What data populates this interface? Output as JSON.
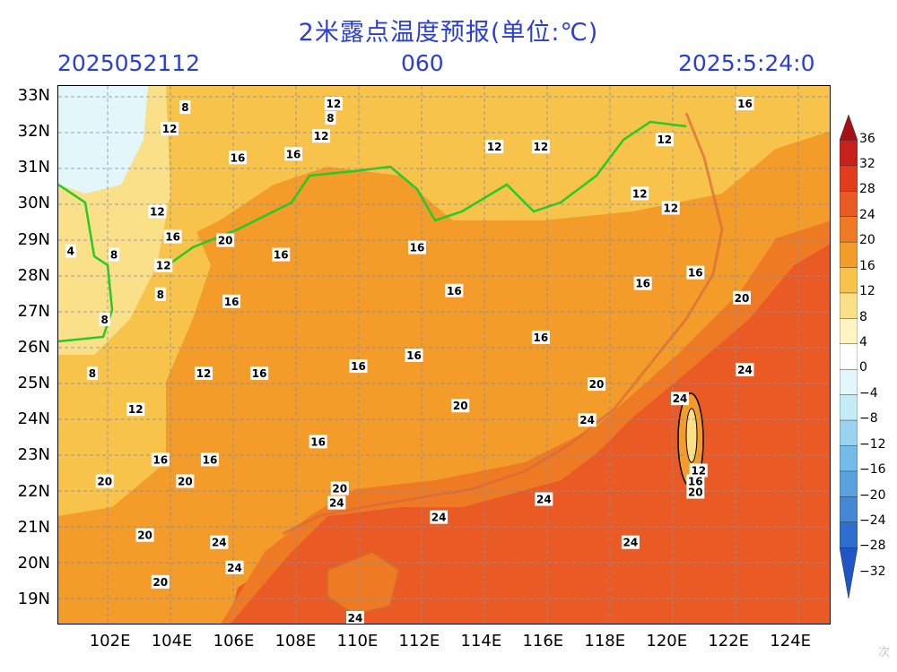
{
  "header": {
    "title": "2米露点温度预报(单位:℃)",
    "init_time": "2025052112",
    "lead_hours": "060",
    "valid_time": "2025:5:24:0"
  },
  "map": {
    "lat_labels": [
      "33N",
      "32N",
      "31N",
      "30N",
      "29N",
      "28N",
      "27N",
      "26N",
      "25N",
      "24N",
      "23N",
      "22N",
      "21N",
      "20N",
      "19N"
    ],
    "lon_labels": [
      "102E",
      "104E",
      "106E",
      "108E",
      "110E",
      "112E",
      "114E",
      "116E",
      "118E",
      "120E",
      "122E",
      "124E"
    ],
    "lat_range": [
      18.3,
      33.3
    ],
    "lon_range": [
      100.3,
      125.3
    ],
    "contour_labels": [
      {
        "text": "8",
        "lon": 104.4,
        "lat": 32.7
      },
      {
        "text": "12",
        "lon": 103.9,
        "lat": 32.1
      },
      {
        "text": "12",
        "lon": 109.2,
        "lat": 32.8
      },
      {
        "text": "8",
        "lon": 109.1,
        "lat": 32.4
      },
      {
        "text": "12",
        "lon": 108.8,
        "lat": 31.9
      },
      {
        "text": "16",
        "lon": 106.1,
        "lat": 31.3
      },
      {
        "text": "16",
        "lon": 107.9,
        "lat": 31.4
      },
      {
        "text": "12",
        "lon": 114.4,
        "lat": 31.6
      },
      {
        "text": "12",
        "lon": 115.9,
        "lat": 31.6
      },
      {
        "text": "16",
        "lon": 122.5,
        "lat": 32.8
      },
      {
        "text": "12",
        "lon": 119.9,
        "lat": 31.8
      },
      {
        "text": "12",
        "lon": 119.1,
        "lat": 30.3
      },
      {
        "text": "12",
        "lon": 120.1,
        "lat": 29.9
      },
      {
        "text": "12",
        "lon": 103.5,
        "lat": 29.8
      },
      {
        "text": "16",
        "lon": 104.0,
        "lat": 29.1
      },
      {
        "text": "20",
        "lon": 105.7,
        "lat": 29.0
      },
      {
        "text": "16",
        "lon": 107.5,
        "lat": 28.6
      },
      {
        "text": "16",
        "lon": 111.9,
        "lat": 28.8
      },
      {
        "text": "4",
        "lon": 100.7,
        "lat": 28.7
      },
      {
        "text": "8",
        "lon": 102.1,
        "lat": 28.6
      },
      {
        "text": "12",
        "lon": 103.7,
        "lat": 28.3
      },
      {
        "text": "8",
        "lon": 103.6,
        "lat": 27.5
      },
      {
        "text": "8",
        "lon": 101.8,
        "lat": 26.8
      },
      {
        "text": "16",
        "lon": 105.9,
        "lat": 27.3
      },
      {
        "text": "16",
        "lon": 113.1,
        "lat": 27.6
      },
      {
        "text": "16",
        "lon": 119.2,
        "lat": 27.8
      },
      {
        "text": "16",
        "lon": 120.9,
        "lat": 28.1
      },
      {
        "text": "20",
        "lon": 122.4,
        "lat": 27.4
      },
      {
        "text": "16",
        "lon": 115.9,
        "lat": 26.3
      },
      {
        "text": "12",
        "lon": 105.0,
        "lat": 25.3
      },
      {
        "text": "16",
        "lon": 106.8,
        "lat": 25.3
      },
      {
        "text": "16",
        "lon": 110.0,
        "lat": 25.5
      },
      {
        "text": "16",
        "lon": 111.8,
        "lat": 25.8
      },
      {
        "text": "8",
        "lon": 101.4,
        "lat": 25.3
      },
      {
        "text": "20",
        "lon": 117.7,
        "lat": 25.0
      },
      {
        "text": "24",
        "lon": 122.5,
        "lat": 25.4
      },
      {
        "text": "24",
        "lon": 120.4,
        "lat": 24.6
      },
      {
        "text": "12",
        "lon": 102.8,
        "lat": 24.3
      },
      {
        "text": "20",
        "lon": 113.3,
        "lat": 24.4
      },
      {
        "text": "24",
        "lon": 117.4,
        "lat": 24.0
      },
      {
        "text": "16",
        "lon": 108.7,
        "lat": 23.4
      },
      {
        "text": "16",
        "lon": 103.6,
        "lat": 22.9
      },
      {
        "text": "16",
        "lon": 105.2,
        "lat": 22.9
      },
      {
        "text": "12",
        "lon": 121.0,
        "lat": 22.6
      },
      {
        "text": "16",
        "lon": 120.9,
        "lat": 22.3
      },
      {
        "text": "20",
        "lon": 120.9,
        "lat": 22.0
      },
      {
        "text": "20",
        "lon": 101.8,
        "lat": 22.3
      },
      {
        "text": "20",
        "lon": 104.4,
        "lat": 22.3
      },
      {
        "text": "20",
        "lon": 109.4,
        "lat": 22.1
      },
      {
        "text": "24",
        "lon": 109.3,
        "lat": 21.7
      },
      {
        "text": "24",
        "lon": 116.0,
        "lat": 21.8
      },
      {
        "text": "24",
        "lon": 112.6,
        "lat": 21.3
      },
      {
        "text": "20",
        "lon": 103.1,
        "lat": 20.8
      },
      {
        "text": "24",
        "lon": 105.5,
        "lat": 20.6
      },
      {
        "text": "24",
        "lon": 118.8,
        "lat": 20.6
      },
      {
        "text": "24",
        "lon": 106.0,
        "lat": 19.9
      },
      {
        "text": "20",
        "lon": 103.6,
        "lat": 19.5
      },
      {
        "text": "24",
        "lon": 109.9,
        "lat": 18.5
      }
    ]
  },
  "colorbar": {
    "levels": [
      "36",
      "32",
      "28",
      "24",
      "20",
      "16",
      "12",
      "8",
      "4",
      "0",
      "−4",
      "−8",
      "−12",
      "−16",
      "−20",
      "−24",
      "−28",
      "−32"
    ],
    "colors": [
      "#a50f15",
      "#c8211b",
      "#e23b1e",
      "#ea5a24",
      "#ef7a24",
      "#f39c2a",
      "#f7c34a",
      "#fbe08a",
      "#fff4c2",
      "#ffffff",
      "#e3f7fb",
      "#c2ecf6",
      "#99d3f0",
      "#73bbe8",
      "#5aa1e0",
      "#4487d6",
      "#2f6ecf",
      "#1f55c4"
    ]
  },
  "watermark": "次"
}
